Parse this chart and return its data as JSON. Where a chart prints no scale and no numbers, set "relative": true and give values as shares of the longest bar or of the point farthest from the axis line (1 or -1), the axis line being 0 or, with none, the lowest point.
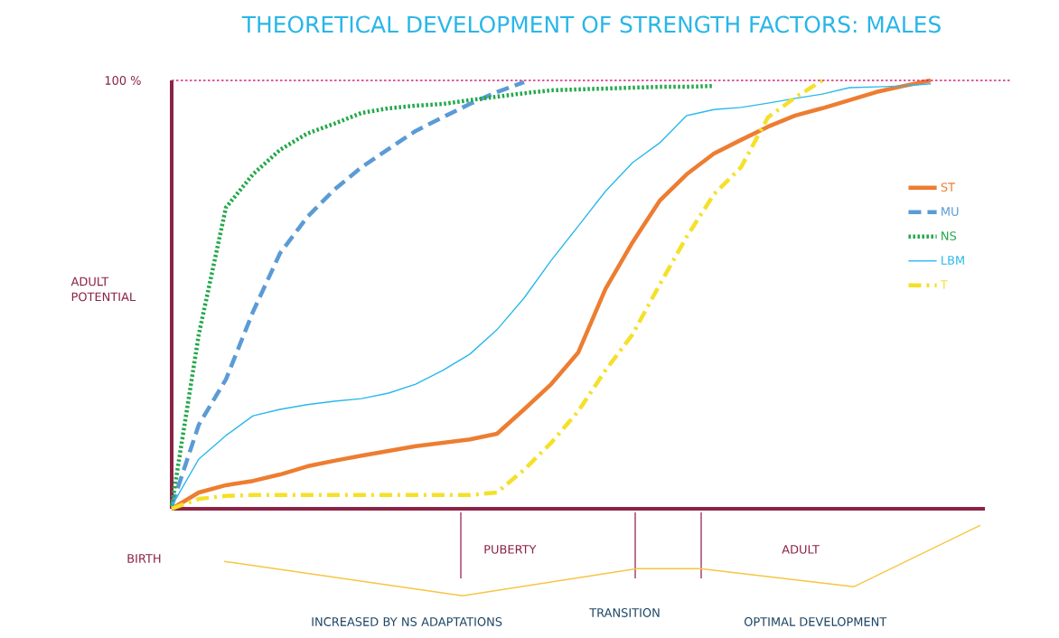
{
  "chart_data": {
    "type": "line",
    "title": "THEORETICAL DEVELOPMENT OF STRENGTH FACTORS: MALES",
    "ylabel": "ADULT POTENTIAL",
    "relative": true,
    "legend": "right",
    "categories": [
      null,
      null,
      null,
      null,
      null,
      null,
      null,
      null,
      null,
      null,
      null,
      null,
      null,
      null,
      null,
      null,
      null,
      null,
      null,
      null,
      null,
      null,
      null,
      null,
      null,
      null,
      null,
      null,
      null,
      null,
      null
    ],
    "series": [
      {
        "name": "ST",
        "color": "#ed7d31",
        "line_style": "solid",
        "values": [
          0,
          0.038,
          0.055,
          0.065,
          0.08,
          0.099,
          0.112,
          0.124,
          0.135,
          0.146,
          0.154,
          0.162,
          0.175,
          0.232,
          0.291,
          0.365,
          0.513,
          0.622,
          0.719,
          0.781,
          0.829,
          0.861,
          0.892,
          0.918,
          0.935,
          0.954,
          0.973,
          0.987,
          1.0,
          null,
          null
        ]
      },
      {
        "name": "MU",
        "color": "#5b9bd5",
        "line_style": "dashed",
        "values": [
          0.006,
          0.196,
          0.302,
          0.46,
          0.597,
          0.681,
          0.745,
          0.797,
          0.84,
          0.882,
          0.914,
          0.945,
          0.973,
          0.996,
          null,
          null,
          null,
          null,
          null,
          null,
          null,
          null,
          null,
          null,
          null,
          null,
          null,
          null,
          null,
          null,
          null
        ]
      },
      {
        "name": "NS",
        "color": "#22a84a",
        "line_style": "dotted",
        "values": [
          0.006,
          0.407,
          0.703,
          0.781,
          0.838,
          0.876,
          0.899,
          0.924,
          0.935,
          0.941,
          0.945,
          0.954,
          0.962,
          0.97,
          0.977,
          0.979,
          0.981,
          0.983,
          0.985,
          0.985,
          0.987,
          null,
          null,
          null,
          null,
          null,
          null,
          null,
          null,
          null,
          null
        ]
      },
      {
        "name": "LBM",
        "color": "#2bb8ec",
        "line_style": "solid",
        "values": [
          0.006,
          0.116,
          0.171,
          0.217,
          0.232,
          0.243,
          0.251,
          0.257,
          0.27,
          0.291,
          0.323,
          0.361,
          0.418,
          0.492,
          0.58,
          0.66,
          0.741,
          0.808,
          0.854,
          0.918,
          0.932,
          0.937,
          0.947,
          0.958,
          0.968,
          0.983,
          0.985,
          0.987,
          0.992,
          null,
          null
        ]
      },
      {
        "name": "T",
        "color": "#f5e02a",
        "line_style": "dashdot",
        "values": [
          0,
          0.023,
          0.03,
          0.032,
          0.032,
          0.032,
          0.032,
          0.032,
          0.032,
          0.032,
          0.032,
          0.032,
          0.038,
          0.091,
          0.154,
          0.228,
          0.323,
          0.407,
          0.523,
          0.635,
          0.734,
          0.797,
          0.914,
          0.96,
          1.0,
          null,
          null,
          null,
          null,
          null,
          null
        ]
      }
    ],
    "ref_lines": [
      {
        "axis": "y",
        "value": 1,
        "label": "100 %",
        "color": "#d6237a",
        "line_style": "dotted"
      }
    ],
    "annotations": [
      "BIRTH",
      "PUBERTY",
      "ADULT",
      "INCREASED BY NS ADAPTATIONS",
      "TRANSITION",
      "OPTIMAL DEVELOPMENT"
    ]
  }
}
